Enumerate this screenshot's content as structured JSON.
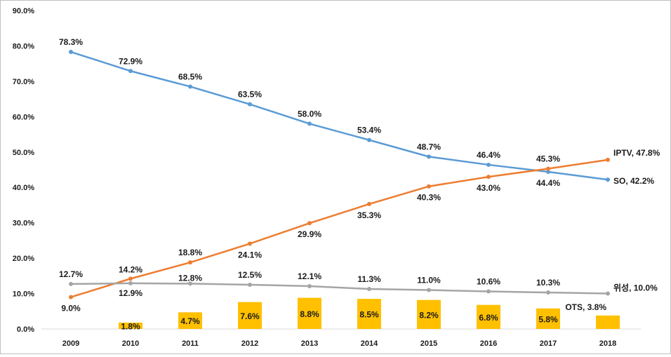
{
  "chart_data": {
    "type": "line",
    "categories": [
      "2009",
      "2010",
      "2011",
      "2012",
      "2013",
      "2014",
      "2015",
      "2016",
      "2017",
      "2018"
    ],
    "y_ticks": [
      "0.0%",
      "10.0%",
      "20.0%",
      "30.0%",
      "40.0%",
      "50.0%",
      "60.0%",
      "70.0%",
      "80.0%",
      "90.0%"
    ],
    "ylim": [
      0,
      90
    ],
    "grid": false,
    "series": [
      {
        "key": "so",
        "type": "line",
        "color": "#5b9bd5",
        "values": [
          78.3,
          72.9,
          68.5,
          63.5,
          58.0,
          53.4,
          48.7,
          46.4,
          44.4,
          42.2
        ],
        "labels": [
          "78.3%",
          "72.9%",
          "68.5%",
          "63.5%",
          "58.0%",
          "53.4%",
          "48.7%",
          "46.4%",
          "44.4%",
          "SO, 42.2%"
        ]
      },
      {
        "key": "iptv",
        "type": "line",
        "color": "#ed7d31",
        "values": [
          9.0,
          14.2,
          18.8,
          24.1,
          29.9,
          35.3,
          40.3,
          43.0,
          45.3,
          47.8
        ],
        "labels": [
          "9.0%",
          "14.2%",
          "18.8%",
          "24.1%",
          "29.9%",
          "35.3%",
          "40.3%",
          "43.0%",
          "45.3%",
          "IPTV,  47.8%"
        ]
      },
      {
        "key": "satellite",
        "type": "line",
        "color": "#a5a5a5",
        "values": [
          12.7,
          12.9,
          12.8,
          12.5,
          12.1,
          11.3,
          11.0,
          10.6,
          10.3,
          10.0
        ],
        "labels": [
          "12.7%",
          "12.9%",
          "12.8%",
          "12.5%",
          "12.1%",
          "11.3%",
          "11.0%",
          "10.6%",
          "10.3%",
          "위성, 10.0%"
        ]
      },
      {
        "key": "ots",
        "type": "bar",
        "color": "#ffc000",
        "values": [
          null,
          1.8,
          4.7,
          7.6,
          8.8,
          8.5,
          8.2,
          6.8,
          5.8,
          3.8
        ],
        "labels": [
          "",
          "1.8%",
          "4.7%",
          "7.6%",
          "8.8%",
          "8.5%",
          "8.2%",
          "6.8%",
          "5.8%",
          "OTS, 3.8%"
        ]
      }
    ]
  }
}
